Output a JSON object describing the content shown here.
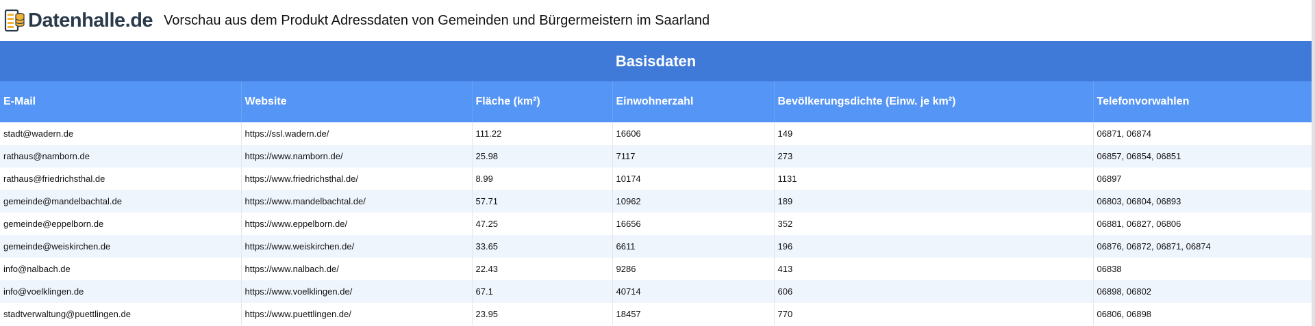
{
  "header": {
    "logo_text": "Datenhalle.de",
    "title": "Vorschau aus dem Produkt Adressdaten von Gemeinden und Bürgermeistern im Saarland"
  },
  "table": {
    "group_title": "Basisdaten",
    "columns": [
      "E-Mail",
      "Website",
      "Fläche (km²)",
      "Einwohnerzahl",
      "Bevölkerungsdichte (Einw. je km²)",
      "Telefonvorwahlen"
    ],
    "rows": [
      [
        "stadt@wadern.de",
        "https://ssl.wadern.de/",
        "111.22",
        "16606",
        "149",
        "06871, 06874"
      ],
      [
        "rathaus@namborn.de",
        "https://www.namborn.de/",
        "25.98",
        "7117",
        "273",
        "06857, 06854, 06851"
      ],
      [
        "rathaus@friedrichsthal.de",
        "https://www.friedrichsthal.de/",
        "8.99",
        "10174",
        "1131",
        "06897"
      ],
      [
        "gemeinde@mandelbachtal.de",
        "https://www.mandelbachtal.de/",
        "57.71",
        "10962",
        "189",
        "06803, 06804, 06893"
      ],
      [
        "gemeinde@eppelborn.de",
        "https://www.eppelborn.de/",
        "47.25",
        "16656",
        "352",
        "06881, 06827, 06806"
      ],
      [
        "gemeinde@weiskirchen.de",
        "https://www.weiskirchen.de/",
        "33.65",
        "6611",
        "196",
        "06876, 06872, 06871, 06874"
      ],
      [
        "info@nalbach.de",
        "https://www.nalbach.de/",
        "22.43",
        "9286",
        "413",
        "06838"
      ],
      [
        "info@voelklingen.de",
        "https://www.voelklingen.de/",
        "67.1",
        "40714",
        "606",
        "06898, 06802"
      ],
      [
        "stadtverwaltung@puettlingen.de",
        "https://www.puettlingen.de/",
        "23.95",
        "18457",
        "770",
        "06806, 06898"
      ]
    ]
  }
}
